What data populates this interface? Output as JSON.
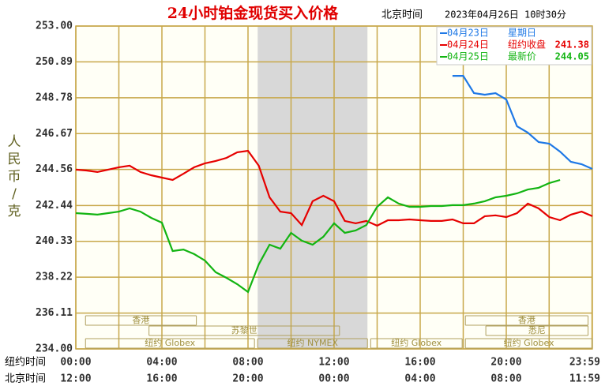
{
  "chart_data": {
    "type": "line",
    "title": "24小时铂金现货买入价格",
    "subtitle": "北京时间",
    "timestamp": "2023年04月26日 10时30分",
    "y_label": "人民币/克",
    "x_label": "纽约时间",
    "x2_label": "北京时间",
    "xlim": [
      0,
      24
    ],
    "ylim": [
      234,
      253
    ],
    "yticks": [
      {
        "value": 253,
        "label": "253.00"
      },
      {
        "value": 250.89,
        "label": "250.89"
      },
      {
        "value": 248.78,
        "label": "248.78"
      },
      {
        "value": 246.67,
        "label": "246.67"
      },
      {
        "value": 244.56,
        "label": "244.56"
      },
      {
        "value": 242.44,
        "label": "242.44"
      },
      {
        "value": 240.33,
        "label": "240.33"
      },
      {
        "value": 238.22,
        "label": "238.22"
      },
      {
        "value": 236.11,
        "label": "236.11"
      },
      {
        "value": 234,
        "label": "234.00"
      }
    ],
    "xticks": [
      {
        "value": 0,
        "label": "00:00"
      },
      {
        "value": 4,
        "label": "04:00"
      },
      {
        "value": 8,
        "label": "08:00"
      },
      {
        "value": 12,
        "label": "12:00"
      },
      {
        "value": 16,
        "label": "16:00"
      },
      {
        "value": 20,
        "label": "20:00"
      },
      {
        "value": 23.983,
        "label": "23:59"
      }
    ],
    "x2tick_labels": [
      "12:00",
      "16:00",
      "20:00",
      "00:00",
      "04:00",
      "08:00",
      "11:59"
    ],
    "grid": true,
    "x": [
      0,
      0.5,
      1,
      1.5,
      2,
      2.5,
      3,
      3.5,
      4,
      4.5,
      5,
      5.5,
      6,
      6.5,
      7,
      7.5,
      8,
      8.5,
      9,
      9.5,
      10,
      10.5,
      11,
      11.5,
      12,
      12.5,
      13,
      13.5,
      14,
      14.5,
      15,
      15.5,
      16,
      16.5,
      17,
      17.5,
      18,
      18.5,
      19,
      19.5,
      20,
      20.5,
      21,
      21.5,
      22,
      22.5,
      23,
      23.5,
      24
    ],
    "series": [
      {
        "name": "04月23日",
        "note": "星期日",
        "color": "#1e78e6",
        "values": [
          null,
          null,
          null,
          null,
          null,
          null,
          null,
          null,
          null,
          null,
          null,
          null,
          null,
          null,
          null,
          null,
          null,
          null,
          null,
          null,
          null,
          null,
          null,
          null,
          null,
          null,
          null,
          null,
          null,
          null,
          null,
          null,
          null,
          null,
          null,
          250.07,
          250.07,
          249.05,
          248.96,
          249.05,
          248.68,
          247.1,
          246.73,
          246.17,
          246.08,
          245.61,
          245.01,
          244.87,
          244.59
        ]
      },
      {
        "name": "04月24日",
        "note": "纽约收盘",
        "note_value": 241.38,
        "color": "#e60000",
        "values": [
          244.55,
          244.5,
          244.41,
          244.55,
          244.69,
          244.78,
          244.41,
          244.22,
          244.08,
          243.94,
          244.31,
          244.69,
          244.92,
          245.06,
          245.24,
          245.57,
          245.66,
          244.78,
          242.92,
          242.08,
          241.99,
          241.29,
          242.69,
          243.01,
          242.69,
          241.53,
          241.39,
          241.53,
          241.25,
          241.57,
          241.57,
          241.62,
          241.57,
          241.53,
          241.53,
          241.62,
          241.39,
          241.39,
          241.81,
          241.86,
          241.76,
          241.99,
          242.55,
          242.27,
          241.76,
          241.57,
          241.9,
          242.08,
          241.81
        ]
      },
      {
        "name": "04月25日",
        "note": "最新价",
        "note_value": 244.05,
        "color": "#12b412",
        "values": [
          241.99,
          241.95,
          241.9,
          241.99,
          242.08,
          242.27,
          242.08,
          241.71,
          241.43,
          239.76,
          239.85,
          239.58,
          239.2,
          238.51,
          238.18,
          237.81,
          237.35,
          238.97,
          240.13,
          239.9,
          240.83,
          240.37,
          240.13,
          240.6,
          241.39,
          240.83,
          240.97,
          241.29,
          242.36,
          242.92,
          242.55,
          242.36,
          242.36,
          242.41,
          242.41,
          242.46,
          242.46,
          242.55,
          242.69,
          242.92,
          243.01,
          243.15,
          243.38,
          243.48,
          243.76,
          243.94,
          null,
          null,
          null
        ]
      }
    ],
    "sessions": [
      [
        {
          "label": "香港",
          "start": 0.45,
          "end": 5.6
        },
        {
          "label": "香港",
          "start": 18.1,
          "end": 23.8
        }
      ],
      [
        {
          "label": "苏黎世",
          "start": 3.4,
          "end": 12.25
        },
        {
          "label": "悉尼",
          "start": 19.05,
          "end": 23.8
        }
      ],
      [
        {
          "label": "纽约 Globex",
          "start": 0.45,
          "end": 8.3
        },
        {
          "label": "纽约 NYMEX",
          "start": 8.45,
          "end": 13.55,
          "shaded": true
        },
        {
          "label": "纽约 Globex",
          "start": 13.7,
          "end": 17.95
        },
        {
          "label": "纽约 Globex",
          "start": 18.1,
          "end": 24
        }
      ]
    ]
  }
}
